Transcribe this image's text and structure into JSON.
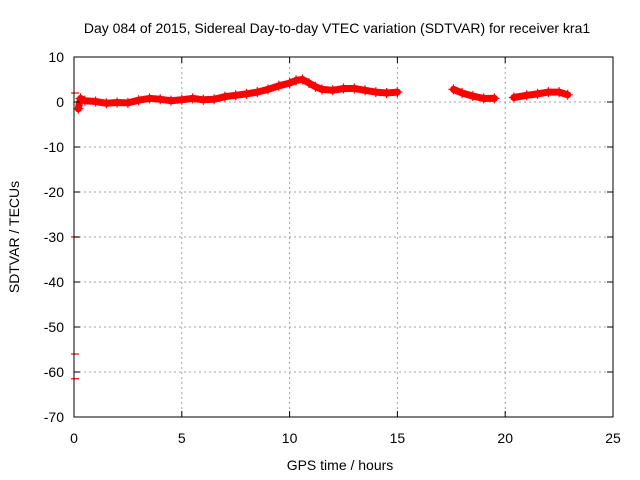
{
  "chart_data": {
    "type": "scatter",
    "title": "Day 084 of 2015, Sidereal Day-to-day VTEC variation (SDTVAR) for receiver kra1",
    "xlabel": "GPS time / hours",
    "ylabel": "SDTVAR / TECUs",
    "xlim": [
      0,
      25
    ],
    "ylim": [
      -70,
      10
    ],
    "xticks": [
      0,
      5,
      10,
      15,
      20,
      25
    ],
    "yticks": [
      10,
      0,
      -10,
      -20,
      -30,
      -40,
      -50,
      -60,
      -70
    ],
    "xtick_labels": [
      "0",
      "5",
      "10",
      "15",
      "20",
      "25"
    ],
    "ytick_labels": [
      "10",
      "0",
      "-10",
      "-20",
      "-30",
      "-40",
      "-50",
      "-60",
      "-70"
    ],
    "grid": true,
    "legend": "none",
    "series": [
      {
        "name": "SDTVAR",
        "color": "#ff0000",
        "marker": "plus",
        "segments": [
          [
            [
              0.2,
              -1.5
            ],
            [
              0.3,
              0.8
            ],
            [
              0.5,
              0.3
            ],
            [
              1.0,
              0.1
            ],
            [
              1.5,
              -0.3
            ],
            [
              2.0,
              -0.1
            ],
            [
              2.5,
              -0.2
            ],
            [
              3.0,
              0.4
            ],
            [
              3.5,
              0.8
            ],
            [
              4.0,
              0.6
            ],
            [
              4.5,
              0.3
            ],
            [
              5.0,
              0.5
            ],
            [
              5.5,
              0.8
            ],
            [
              6.0,
              0.5
            ],
            [
              6.5,
              0.6
            ],
            [
              7.0,
              1.2
            ],
            [
              7.5,
              1.5
            ],
            [
              8.0,
              1.8
            ],
            [
              8.5,
              2.2
            ],
            [
              9.0,
              2.8
            ],
            [
              9.5,
              3.6
            ],
            [
              10.0,
              4.2
            ],
            [
              10.3,
              4.8
            ],
            [
              10.6,
              5.0
            ],
            [
              10.9,
              4.2
            ],
            [
              11.2,
              3.4
            ],
            [
              11.5,
              2.8
            ],
            [
              12.0,
              2.6
            ],
            [
              12.5,
              3.0
            ],
            [
              13.0,
              3.0
            ],
            [
              13.5,
              2.6
            ],
            [
              14.0,
              2.2
            ],
            [
              14.5,
              2.0
            ],
            [
              15.0,
              2.2
            ]
          ],
          [
            [
              17.6,
              2.8
            ],
            [
              18.0,
              2.0
            ],
            [
              18.5,
              1.3
            ],
            [
              19.0,
              0.8
            ],
            [
              19.5,
              0.8
            ]
          ],
          [
            [
              20.4,
              1.0
            ],
            [
              21.0,
              1.5
            ],
            [
              21.5,
              1.8
            ],
            [
              22.0,
              2.2
            ],
            [
              22.5,
              2.2
            ],
            [
              22.9,
              1.6
            ]
          ]
        ],
        "outliers": [
          [
            0.0,
            2.0
          ],
          [
            0.0,
            -30.0
          ],
          [
            0.0,
            -56.0
          ],
          [
            0.0,
            -61.5
          ]
        ]
      }
    ]
  }
}
